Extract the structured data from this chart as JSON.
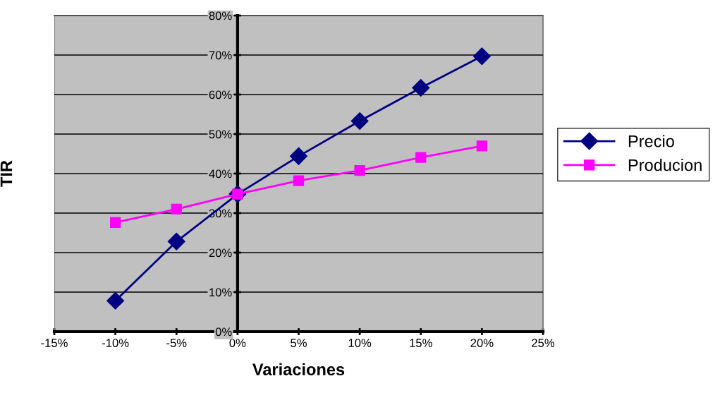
{
  "chart_data": {
    "type": "line",
    "xlabel": "Variaciones",
    "ylabel": "TIR",
    "x": [
      -10,
      -5,
      0,
      5,
      10,
      15,
      20
    ],
    "series": [
      {
        "name": "Precio",
        "color": "#000080",
        "marker": "diamond",
        "values": [
          7.8,
          22.8,
          34.8,
          44.4,
          53.3,
          61.7,
          69.7
        ]
      },
      {
        "name": "Producion",
        "color": "#ff00ff",
        "marker": "square",
        "values": [
          27.6,
          31.0,
          34.8,
          38.2,
          40.8,
          44.1,
          47.0
        ]
      }
    ],
    "xlim": [
      -15,
      25
    ],
    "xticks": [
      {
        "value": -15,
        "label": "-15%"
      },
      {
        "value": -10,
        "label": "-10%"
      },
      {
        "value": -5,
        "label": "-5%"
      },
      {
        "value": 0,
        "label": "0%"
      },
      {
        "value": 5,
        "label": "5%"
      },
      {
        "value": 10,
        "label": "10%"
      },
      {
        "value": 15,
        "label": "15%"
      },
      {
        "value": 20,
        "label": "20%"
      },
      {
        "value": 25,
        "label": "25%"
      }
    ],
    "ylim": [
      0,
      80
    ],
    "yticks": [
      {
        "value": 0,
        "label": "0%"
      },
      {
        "value": 10,
        "label": "10%"
      },
      {
        "value": 20,
        "label": "20%"
      },
      {
        "value": 30,
        "label": "30%"
      },
      {
        "value": 40,
        "label": "40%"
      },
      {
        "value": 50,
        "label": "50%"
      },
      {
        "value": 60,
        "label": "60%"
      },
      {
        "value": 70,
        "label": "70%"
      },
      {
        "value": 80,
        "label": "80%"
      }
    ],
    "grid": "y",
    "legend": "right",
    "line_style": "solid"
  }
}
